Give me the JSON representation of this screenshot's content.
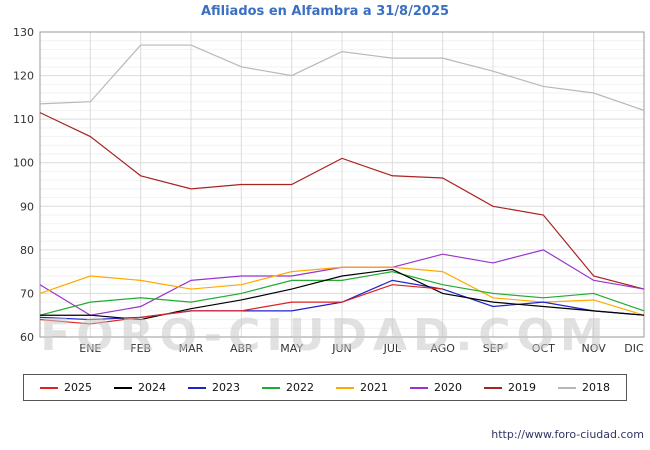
{
  "title": "Afiliados en Alfambra a 31/8/2025",
  "watermark": "FORO-CIUDAD.COM",
  "source_url": "http://www.foro-ciudad.com",
  "chart_data": {
    "type": "line",
    "title": "Afiliados en Alfambra a 31/8/2025",
    "categories": [
      "ENE",
      "FEB",
      "MAR",
      "ABR",
      "MAY",
      "JUN",
      "JUL",
      "AGO",
      "SEP",
      "OCT",
      "NOV",
      "DIC"
    ],
    "x_note": "first value of each series sits at the left plot edge (start of year); following values align with month ticks ENE-DIC; 2025 ends at AGO",
    "ylim": [
      60,
      130
    ],
    "yticks": [
      60,
      70,
      80,
      90,
      100,
      110,
      120,
      130
    ],
    "grid": true,
    "legend_position": "bottom",
    "series": [
      {
        "name": "2025",
        "color": "#dd2222",
        "values": [
          64,
          63,
          64.5,
          66,
          66,
          68,
          68,
          72,
          71
        ]
      },
      {
        "name": "2024",
        "color": "#000000",
        "values": [
          65,
          65,
          64,
          66.5,
          68.5,
          71,
          74,
          75.5,
          70,
          68,
          67,
          66,
          65
        ]
      },
      {
        "name": "2023",
        "color": "#2222cc",
        "values": [
          64.5,
          64,
          64.5,
          66,
          66,
          66,
          68,
          73,
          71,
          67,
          68,
          66,
          65
        ]
      },
      {
        "name": "2022",
        "color": "#22aa33",
        "values": [
          65,
          68,
          69,
          68,
          70,
          73,
          73,
          75,
          72,
          70,
          69,
          70,
          66
        ]
      },
      {
        "name": "2021",
        "color": "#ffaa00",
        "values": [
          70,
          74,
          73,
          71,
          72,
          75,
          76,
          76,
          75,
          69,
          68,
          68.5,
          65
        ]
      },
      {
        "name": "2020",
        "color": "#9933cc",
        "values": [
          72,
          65,
          67,
          73,
          74,
          74,
          76,
          76,
          79,
          77,
          80,
          73,
          71
        ]
      },
      {
        "name": "2019",
        "color": "#aa2222",
        "values": [
          111.5,
          106,
          97,
          94,
          95,
          95,
          101,
          97,
          96.5,
          90,
          88,
          74,
          71
        ]
      },
      {
        "name": "2018",
        "color": "#b8b8b8",
        "values": [
          113.5,
          114,
          127,
          127,
          122,
          120,
          125.5,
          124,
          124,
          121,
          117.5,
          116,
          112
        ]
      }
    ]
  }
}
